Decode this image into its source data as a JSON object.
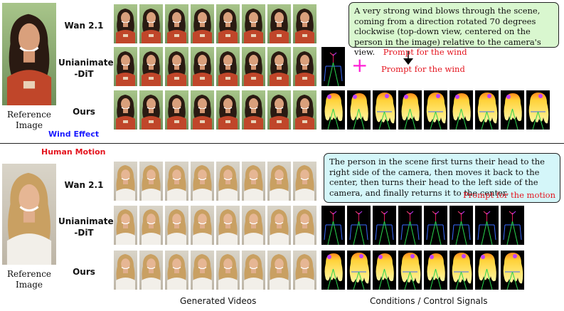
{
  "colors": {
    "prompt_tag": "#e4141e",
    "wind_effect": "#1a1aff",
    "human_motion": "#e4141e",
    "box_green": "#d9f7cf",
    "box_cyan": "#d4f6f9",
    "plus": "#ff1fd6"
  },
  "top": {
    "reference_caption_line1": "Reference",
    "reference_caption_line2": "Image",
    "effect_title": "Wind Effect",
    "rows": [
      {
        "label_line1": "Wan 2.1",
        "label_line2": ""
      },
      {
        "label_line1": "Unianimate",
        "label_line2": "-DiT"
      },
      {
        "label_line1": "Ours",
        "label_line2": ""
      }
    ],
    "prompt_text": "A very strong wind blows through the scene, coming from a direction rotated 70 degrees clockwise (top-down view, centered on the person in the image) relative to the camera's view.",
    "prompt_tag": "Prompt for the wind",
    "plus_symbol": "+",
    "plus_label": "Prompt for the wind"
  },
  "bottom": {
    "effect_title": "Human Motion",
    "reference_caption_line1": "Reference",
    "reference_caption_line2": "Image",
    "rows": [
      {
        "label_line1": "Wan 2.1",
        "label_line2": ""
      },
      {
        "label_line1": "Unianimate",
        "label_line2": "-DiT"
      },
      {
        "label_line1": "Ours",
        "label_line2": ""
      }
    ],
    "prompt_text": "The person in the scene first turns their head to the right side of the camera, then moves it back to the center, then turns their head to the left side of the camera, and finally returns it to the center.",
    "prompt_tag": "Prompt for the motion"
  },
  "footer": {
    "generated_videos": "Generated Videos",
    "conditions": "Conditions / Control Signals"
  }
}
